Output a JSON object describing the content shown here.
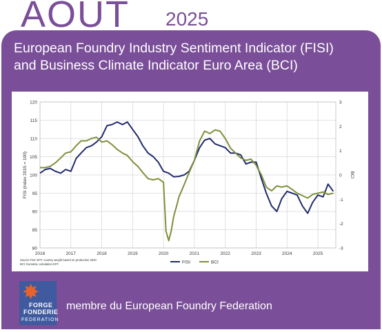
{
  "header": {
    "month": "AOUT",
    "year": "2025"
  },
  "title": {
    "line1": "European Foundry Industry Sentiment Indicator (FISI)",
    "line2": "and Business Climate Indicator Euro Area (BCI)"
  },
  "footer": {
    "logo_line1": "FORGE",
    "logo_line2": "FONDERIE",
    "logo_line3": "FEDERATION",
    "member_text": "membre du European Foundry Federation"
  },
  "colors": {
    "purple": "#7a4e98",
    "fisi": "#1f2a6b",
    "bci": "#7d8f3a"
  },
  "chart_data": {
    "type": "line",
    "title": "",
    "ylabel": "FISI (index 2015 = 100)",
    "y2label": "BCI",
    "ylim": [
      80,
      120
    ],
    "y2lim": [
      -3,
      3
    ],
    "xlim": [
      2016,
      2025.58
    ],
    "yticks": [
      "80",
      "85",
      "90",
      "95",
      "100",
      "105",
      "110",
      "115",
      "120"
    ],
    "y2ticks": [
      "-3",
      "-2",
      "-1",
      "0",
      "1",
      "2",
      "3"
    ],
    "xticks": [
      "2016",
      "2017",
      "2018",
      "2019",
      "2020",
      "2021",
      "2022",
      "2023",
      "2024",
      "2025"
    ],
    "grid": true,
    "legend": "bottom-center",
    "source_line1": "Source FISI: EFF, country weight based on production 2020",
    "source_line2": "BCI: Eurostat, calculation EFF",
    "series": [
      {
        "name": "FISI",
        "axis": "left",
        "x": [
          2016.0,
          2016.17,
          2016.33,
          2016.5,
          2016.67,
          2016.83,
          2017.0,
          2017.17,
          2017.33,
          2017.5,
          2017.67,
          2017.83,
          2018.0,
          2018.17,
          2018.33,
          2018.5,
          2018.67,
          2018.83,
          2019.0,
          2019.17,
          2019.33,
          2019.5,
          2019.67,
          2019.83,
          2020.0,
          2020.17,
          2020.33,
          2020.5,
          2020.67,
          2020.83,
          2021.0,
          2021.17,
          2021.33,
          2021.5,
          2021.67,
          2021.83,
          2022.0,
          2022.17,
          2022.33,
          2022.5,
          2022.67,
          2022.83,
          2023.0,
          2023.17,
          2023.33,
          2023.5,
          2023.67,
          2023.83,
          2024.0,
          2024.17,
          2024.33,
          2024.5,
          2024.67,
          2024.83,
          2025.0,
          2025.17,
          2025.33,
          2025.5
        ],
        "values": [
          100.5,
          101.5,
          101.8,
          101.0,
          100.5,
          101.5,
          101.0,
          104.5,
          106.0,
          107.5,
          108.0,
          109.0,
          110.5,
          113.5,
          113.8,
          114.5,
          113.8,
          114.5,
          112.5,
          110.5,
          108.0,
          106.0,
          105.0,
          103.5,
          101.0,
          100.5,
          99.5,
          99.6,
          100.0,
          101.0,
          104.0,
          107.5,
          109.5,
          110.0,
          108.5,
          108.0,
          107.5,
          106.0,
          106.0,
          105.5,
          103.0,
          103.5,
          103.5,
          99.0,
          95.0,
          91.5,
          90.0,
          93.5,
          95.5,
          95.0,
          94.5,
          91.5,
          89.5,
          92.5,
          94.5,
          94.0,
          97.5,
          95.5
        ]
      },
      {
        "name": "BCI",
        "axis": "right",
        "x": [
          2016.0,
          2016.17,
          2016.33,
          2016.5,
          2016.67,
          2016.83,
          2017.0,
          2017.17,
          2017.33,
          2017.5,
          2017.67,
          2017.83,
          2018.0,
          2018.17,
          2018.33,
          2018.5,
          2018.67,
          2018.83,
          2019.0,
          2019.17,
          2019.33,
          2019.5,
          2019.67,
          2019.83,
          2020.0,
          2020.08,
          2020.17,
          2020.25,
          2020.33,
          2020.42,
          2020.5,
          2020.67,
          2020.83,
          2021.0,
          2021.17,
          2021.33,
          2021.5,
          2021.67,
          2021.83,
          2022.0,
          2022.17,
          2022.33,
          2022.5,
          2022.67,
          2022.83,
          2023.0,
          2023.17,
          2023.33,
          2023.5,
          2023.67,
          2023.83,
          2024.0,
          2024.17,
          2024.33,
          2024.5,
          2024.67,
          2024.83,
          2025.0,
          2025.17,
          2025.33,
          2025.5
        ],
        "values": [
          0.3,
          0.3,
          0.35,
          0.5,
          0.7,
          0.9,
          0.95,
          1.2,
          1.4,
          1.4,
          1.5,
          1.55,
          1.35,
          1.4,
          1.25,
          1.05,
          0.9,
          0.8,
          0.55,
          0.35,
          0.1,
          -0.15,
          -0.2,
          -0.15,
          -0.3,
          -2.3,
          -2.7,
          -2.3,
          -1.7,
          -1.3,
          -0.9,
          -0.4,
          0.1,
          0.6,
          1.4,
          1.8,
          1.7,
          1.85,
          1.8,
          1.5,
          1.1,
          0.9,
          0.7,
          0.6,
          0.65,
          0.4,
          0.0,
          -0.5,
          -0.65,
          -0.45,
          -0.5,
          -0.45,
          -0.6,
          -0.75,
          -0.85,
          -0.95,
          -0.8,
          -0.75,
          -0.7,
          -0.8,
          -0.75
        ]
      }
    ]
  }
}
